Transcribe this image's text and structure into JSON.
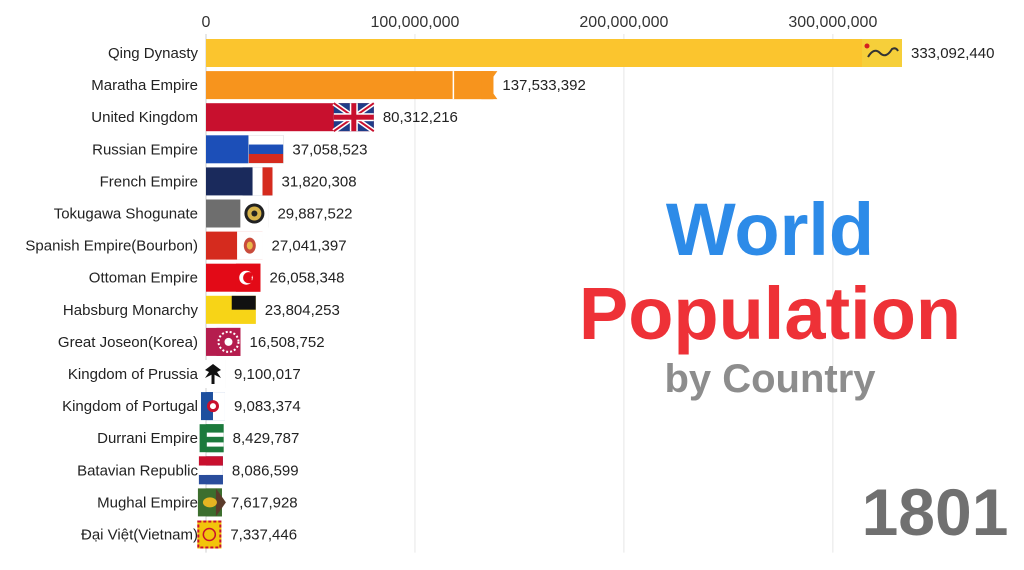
{
  "title": {
    "line1": "World",
    "line2": "Population",
    "line3": "by Country"
  },
  "year": "1801",
  "colors": {
    "title_blue": "#2d8be8",
    "title_red": "#ee3137",
    "subtitle_gray": "#8d8d8d",
    "year_gray": "#707070"
  },
  "chart_data": {
    "type": "bar",
    "orientation": "horizontal",
    "title": "World Population by Country",
    "xlabel": "",
    "ylabel": "",
    "xlim": [
      0,
      333092440
    ],
    "x_ticks": [
      0,
      100000000,
      200000000,
      300000000
    ],
    "x_tick_labels": [
      "0",
      "100,000,000",
      "200,000,000",
      "300,000,000"
    ],
    "grid": true,
    "categories": [
      "Qing Dynasty",
      "Maratha Empire",
      "United Kingdom",
      "Russian Empire",
      "French Empire",
      "Tokugawa Shogunate",
      "Spanish Empire(Bourbon)",
      "Ottoman Empire",
      "Habsburg Monarchy",
      "Great Joseon(Korea)",
      "Kingdom of Prussia",
      "Kingdom of Portugal",
      "Durrani Empire",
      "Batavian Republic",
      "Mughal Empire",
      "Đại Việt(Vietnam)"
    ],
    "values": [
      333092440,
      137533392,
      80312216,
      37058523,
      31820308,
      29887522,
      27041397,
      26058348,
      23804253,
      16508752,
      9100017,
      9083374,
      8429787,
      8086599,
      7617928,
      7337446
    ],
    "value_labels": [
      "333,092,440",
      "137,533,392",
      "80,312,216",
      "37,058,523",
      "31,820,308",
      "29,887,522",
      "27,041,397",
      "26,058,348",
      "23,804,253",
      "16,508,752",
      "9,100,017",
      "9,083,374",
      "8,429,787",
      "8,086,599",
      "7,617,928",
      "7,337,446"
    ],
    "bar_colors": [
      "#fbc52e",
      "#f7941d",
      "#c8102e",
      "#1c4fb8",
      "#1a2a5c",
      "#6e6e6e",
      "#d52b1e",
      "#e30a17",
      "#f7d417",
      "#b51d4e",
      "#7a7a7a",
      "#1d4f9e",
      "#1c7a3c",
      "#2a4d9c",
      "#3c6e2e",
      "#f2c40c"
    ],
    "flag_icons": [
      "qing-dragon-flag",
      "maratha-pennant-flag",
      "union-jack-flag",
      "russia-tricolor-flag",
      "france-tricolor-flag",
      "tokugawa-mon-flag",
      "spanish-bourbon-flag",
      "ottoman-crescent-flag",
      "habsburg-bicolor-flag",
      "joseon-flag",
      "prussia-eagle-flag",
      "portugal-arms-flag",
      "durrani-flag",
      "batavian-tricolor-flag",
      "mughal-lion-flag",
      "dai-viet-flag"
    ]
  }
}
